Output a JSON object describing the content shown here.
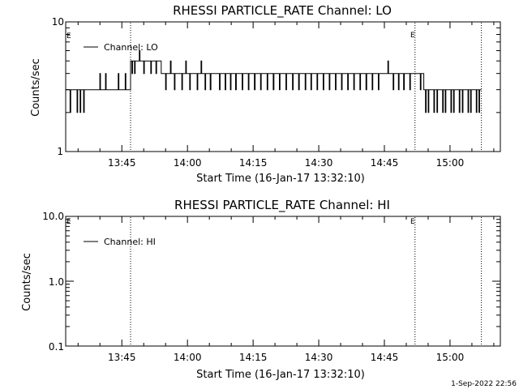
{
  "figure": {
    "footer_timestamp": "1-Sep-2022 22:56"
  },
  "chart_data": [
    {
      "type": "line",
      "title": "RHESSI PARTICLE_RATE Channel: LO",
      "xlabel": "Start Time (16-Jan-17 13:32:10)",
      "ylabel": "Counts/sec",
      "yscale": "log",
      "ylim": [
        1,
        10
      ],
      "xlim": [
        "13:32:10",
        "15:11:30"
      ],
      "x_tick_labels": [
        "13:45",
        "14:00",
        "14:15",
        "14:30",
        "14:45",
        "15:00"
      ],
      "y_tick_labels": [
        "1",
        "10"
      ],
      "marker_lines": [
        "13:47:00",
        "14:52:00",
        "15:07:10"
      ],
      "marker_labels": [
        "E",
        "E"
      ],
      "legend_position": "top-left",
      "series": [
        {
          "name": "Channel: LO",
          "segments": [
            {
              "t0": "13:32:10",
              "t1": "13:45:10",
              "level": 3,
              "spikes": [
                [
                  0.0,
                  2
                ],
                [
                  1.0,
                  2
                ],
                [
                  1.5,
                  3
                ],
                [
                  2.6,
                  2
                ],
                [
                  3.3,
                  2
                ],
                [
                  4.1,
                  2
                ],
                [
                  5.0,
                  3
                ],
                [
                  7.8,
                  4
                ],
                [
                  9.1,
                  4
                ],
                [
                  10.4,
                  3
                ],
                [
                  12.0,
                  4
                ],
                [
                  12.8,
                  3
                ]
              ]
            },
            {
              "t0": "13:45:10",
              "t1": "13:47:00",
              "level": 3,
              "spikes": [
                [
                  0.6,
                  4
                ],
                [
                  1.3,
                  3
                ]
              ]
            },
            {
              "t0": "13:47:00",
              "t1": "13:54:00",
              "level": 5,
              "spikes": [
                [
                  0.3,
                  4
                ],
                [
                  0.9,
                  4
                ],
                [
                  1.5,
                  5
                ],
                [
                  2.0,
                  6
                ],
                [
                  2.4,
                  5
                ],
                [
                  3.0,
                  4
                ],
                [
                  3.5,
                  5
                ],
                [
                  4.1,
                  5
                ],
                [
                  4.6,
                  4
                ],
                [
                  5.2,
                  5
                ],
                [
                  5.8,
                  4
                ],
                [
                  6.4,
                  5
                ]
              ]
            },
            {
              "t0": "13:54:00",
              "t1": "14:50:00",
              "level": 4,
              "spikes": [
                [
                  1.0,
                  3
                ],
                [
                  2.1,
                  5
                ],
                [
                  3.0,
                  3
                ],
                [
                  3.8,
                  4
                ],
                [
                  4.7,
                  3
                ],
                [
                  5.6,
                  5
                ],
                [
                  6.5,
                  3
                ],
                [
                  7.3,
                  4
                ],
                [
                  8.2,
                  3
                ],
                [
                  9.1,
                  5
                ],
                [
                  10.0,
                  3
                ],
                [
                  11.2,
                  3
                ],
                [
                  12.1,
                  4
                ],
                [
                  13.3,
                  3
                ],
                [
                  14.6,
                  3
                ],
                [
                  15.8,
                  3
                ],
                [
                  17.0,
                  3
                ],
                [
                  18.5,
                  3
                ],
                [
                  19.9,
                  3
                ],
                [
                  21.3,
                  3
                ],
                [
                  22.7,
                  3
                ],
                [
                  24.2,
                  3
                ],
                [
                  25.6,
                  3
                ],
                [
                  27.0,
                  3
                ],
                [
                  28.5,
                  3
                ],
                [
                  30.0,
                  3
                ],
                [
                  31.4,
                  3
                ],
                [
                  32.9,
                  3
                ],
                [
                  34.2,
                  3
                ],
                [
                  35.6,
                  3
                ],
                [
                  37.0,
                  3
                ],
                [
                  38.4,
                  3
                ],
                [
                  39.8,
                  3
                ],
                [
                  41.2,
                  3
                ],
                [
                  42.6,
                  3
                ],
                [
                  44.0,
                  3
                ],
                [
                  45.4,
                  3
                ],
                [
                  46.8,
                  3
                ],
                [
                  48.2,
                  3
                ],
                [
                  49.6,
                  3
                ],
                [
                  50.6,
                  4
                ],
                [
                  51.8,
                  5
                ],
                [
                  53.0,
                  3
                ],
                [
                  54.2,
                  3
                ],
                [
                  55.4,
                  3
                ]
              ]
            },
            {
              "t0": "14:50:00",
              "t1": "14:54:00",
              "level": 4,
              "spikes": [
                [
                  0.8,
                  3
                ],
                [
                  1.9,
                  4
                ],
                [
                  3.2,
                  3
                ]
              ]
            },
            {
              "t0": "14:54:00",
              "t1": "15:07:10",
              "level": 3,
              "spikes": [
                [
                  0.4,
                  2
                ],
                [
                  1.0,
                  2
                ],
                [
                  1.7,
                  3
                ],
                [
                  2.3,
                  2
                ],
                [
                  3.0,
                  2
                ],
                [
                  3.6,
                  3
                ],
                [
                  4.3,
                  2
                ],
                [
                  4.9,
                  2
                ],
                [
                  5.5,
                  3
                ],
                [
                  6.2,
                  2
                ],
                [
                  6.8,
                  2
                ],
                [
                  7.5,
                  3
                ],
                [
                  8.1,
                  2
                ],
                [
                  8.8,
                  2
                ],
                [
                  9.4,
                  3
                ],
                [
                  10.1,
                  2
                ],
                [
                  10.7,
                  2
                ],
                [
                  11.4,
                  3
                ],
                [
                  12.0,
                  2
                ],
                [
                  12.6,
                  2
                ]
              ]
            }
          ]
        }
      ]
    },
    {
      "type": "line",
      "title": "RHESSI PARTICLE_RATE Channel: HI",
      "xlabel": "Start Time (16-Jan-17 13:32:10)",
      "ylabel": "Counts/sec",
      "yscale": "log",
      "ylim": [
        0.1,
        10
      ],
      "xlim": [
        "13:32:10",
        "15:11:30"
      ],
      "x_tick_labels": [
        "13:45",
        "14:00",
        "14:15",
        "14:30",
        "14:45",
        "15:00"
      ],
      "y_tick_labels": [
        "0.1",
        "1.0",
        "10.0"
      ],
      "marker_lines": [
        "13:47:00",
        "14:52:00",
        "15:07:10"
      ],
      "marker_labels": [
        "E",
        "E"
      ],
      "legend_position": "top-left",
      "series": [
        {
          "name": "Channel: HI",
          "segments": []
        }
      ]
    }
  ]
}
